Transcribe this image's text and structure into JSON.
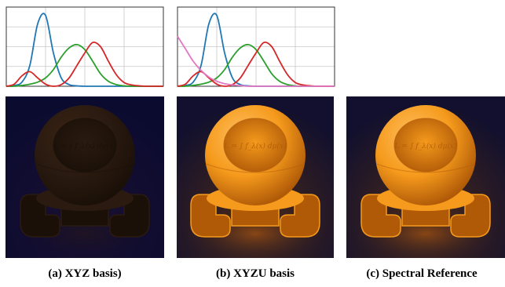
{
  "chart_data": [
    {
      "type": "line",
      "x": [
        380,
        400,
        420,
        440,
        460,
        480,
        500,
        520,
        540,
        560,
        580,
        600,
        620,
        640,
        660,
        680,
        700,
        720,
        740,
        760,
        780
      ],
      "xlim": [
        380,
        780
      ],
      "ylim": [
        0,
        1.9
      ],
      "grid": true,
      "series": [
        {
          "color": "#1f77b4",
          "values": [
            0.0,
            0.02,
            0.1,
            0.5,
            1.5,
            1.7,
            0.8,
            0.2,
            0.04,
            0.01,
            0.0,
            0.0,
            0.0,
            0.0,
            0.0,
            0.0,
            0.0,
            0.0,
            0.0,
            0.0,
            0.0
          ]
        },
        {
          "color": "#2ca02c",
          "values": [
            0.0,
            0.0,
            0.02,
            0.05,
            0.1,
            0.2,
            0.4,
            0.7,
            0.92,
            1.0,
            0.88,
            0.6,
            0.3,
            0.12,
            0.04,
            0.01,
            0.0,
            0.0,
            0.0,
            0.0,
            0.0
          ]
        },
        {
          "color": "#d62728",
          "values": [
            0.0,
            0.05,
            0.25,
            0.35,
            0.2,
            0.05,
            0.0,
            0.04,
            0.2,
            0.5,
            0.8,
            1.05,
            0.95,
            0.6,
            0.28,
            0.09,
            0.03,
            0.01,
            0.0,
            0.0,
            0.0
          ]
        }
      ]
    },
    {
      "type": "line",
      "x": [
        380,
        400,
        420,
        440,
        460,
        480,
        500,
        520,
        540,
        560,
        580,
        600,
        620,
        640,
        660,
        680,
        700,
        720,
        740,
        760,
        780
      ],
      "xlim": [
        380,
        780
      ],
      "ylim": [
        0,
        1.9
      ],
      "grid": true,
      "series": [
        {
          "color": "#1f77b4",
          "values": [
            0.0,
            0.02,
            0.1,
            0.5,
            1.5,
            1.7,
            0.8,
            0.2,
            0.04,
            0.01,
            0.0,
            0.0,
            0.0,
            0.0,
            0.0,
            0.0,
            0.0,
            0.0,
            0.0,
            0.0,
            0.0
          ]
        },
        {
          "color": "#2ca02c",
          "values": [
            0.0,
            0.0,
            0.02,
            0.05,
            0.1,
            0.2,
            0.4,
            0.7,
            0.92,
            1.0,
            0.88,
            0.6,
            0.3,
            0.12,
            0.04,
            0.01,
            0.0,
            0.0,
            0.0,
            0.0,
            0.0
          ]
        },
        {
          "color": "#d62728",
          "values": [
            0.0,
            0.05,
            0.25,
            0.35,
            0.2,
            0.05,
            0.0,
            0.04,
            0.2,
            0.5,
            0.8,
            1.05,
            0.95,
            0.6,
            0.28,
            0.09,
            0.03,
            0.01,
            0.0,
            0.0,
            0.0
          ]
        },
        {
          "color": "#e377c2",
          "values": [
            1.2,
            0.9,
            0.6,
            0.38,
            0.22,
            0.12,
            0.06,
            0.03,
            0.015,
            0.0,
            0.0,
            0.0,
            0.0,
            0.0,
            0.0,
            0.0,
            0.0,
            0.0,
            0.0,
            0.0,
            0.0
          ]
        }
      ]
    }
  ],
  "renders": [
    {
      "caption": "(a) XYZ basis)",
      "equation": "L = ∫ f_λ(x) dμ(x)",
      "background": "#0b0b30",
      "body_color": "#2a1a10",
      "highlight": "#3a2414",
      "shadow": "#1a1008"
    },
    {
      "caption": "(b) XYZU basis",
      "equation": "L = ∫ f_λ(x) dμ(x)",
      "background": "#12102e",
      "body_color": "#f59a1c",
      "highlight": "#ffc060",
      "shadow": "#b05a08"
    },
    {
      "caption": "(c) Spectral Reference",
      "equation": "L = ∫ f_λ(x) dμ(x)",
      "background": "#12102e",
      "body_color": "#f59a1c",
      "highlight": "#ffc060",
      "shadow": "#b05a08"
    }
  ]
}
